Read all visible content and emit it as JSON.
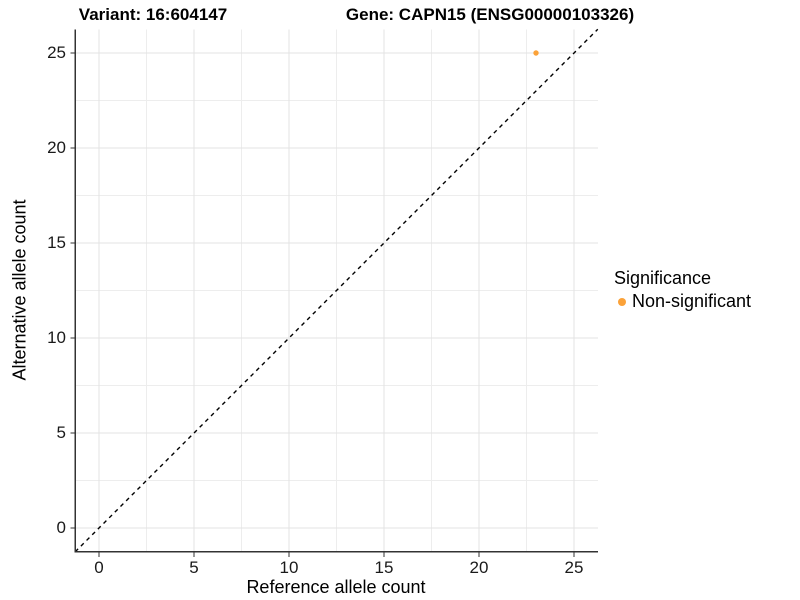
{
  "chart_data": {
    "type": "scatter",
    "title_left": "Variant: 16:604147",
    "title_right": "Gene: CAPN15 (ENSG00000103326)",
    "xlabel": "Reference allele count",
    "ylabel": "Alternative allele count",
    "xlim": [
      -1.25,
      26.25
    ],
    "ylim": [
      -1.25,
      26.25
    ],
    "x_ticks": [
      0,
      5,
      10,
      15,
      20,
      25
    ],
    "y_ticks": [
      0,
      5,
      10,
      15,
      20,
      25
    ],
    "minor_gridlines": true,
    "grid": true,
    "points": [
      {
        "x": 23,
        "y": 25,
        "series": "Non-significant"
      }
    ],
    "identity_line": {
      "slope": 1,
      "intercept": 0,
      "style": "dashed",
      "color": "#000000"
    },
    "legend": {
      "title": "Significance",
      "position": "right",
      "items": [
        {
          "label": "Non-significant",
          "color": "#FBA239"
        }
      ]
    },
    "colors": {
      "point": "#FBA239",
      "grid_major": "#E3E3E3",
      "grid_minor": "#EDEDED",
      "axis": "#333333",
      "background": "#FFFFFF",
      "text": "#000000"
    }
  }
}
